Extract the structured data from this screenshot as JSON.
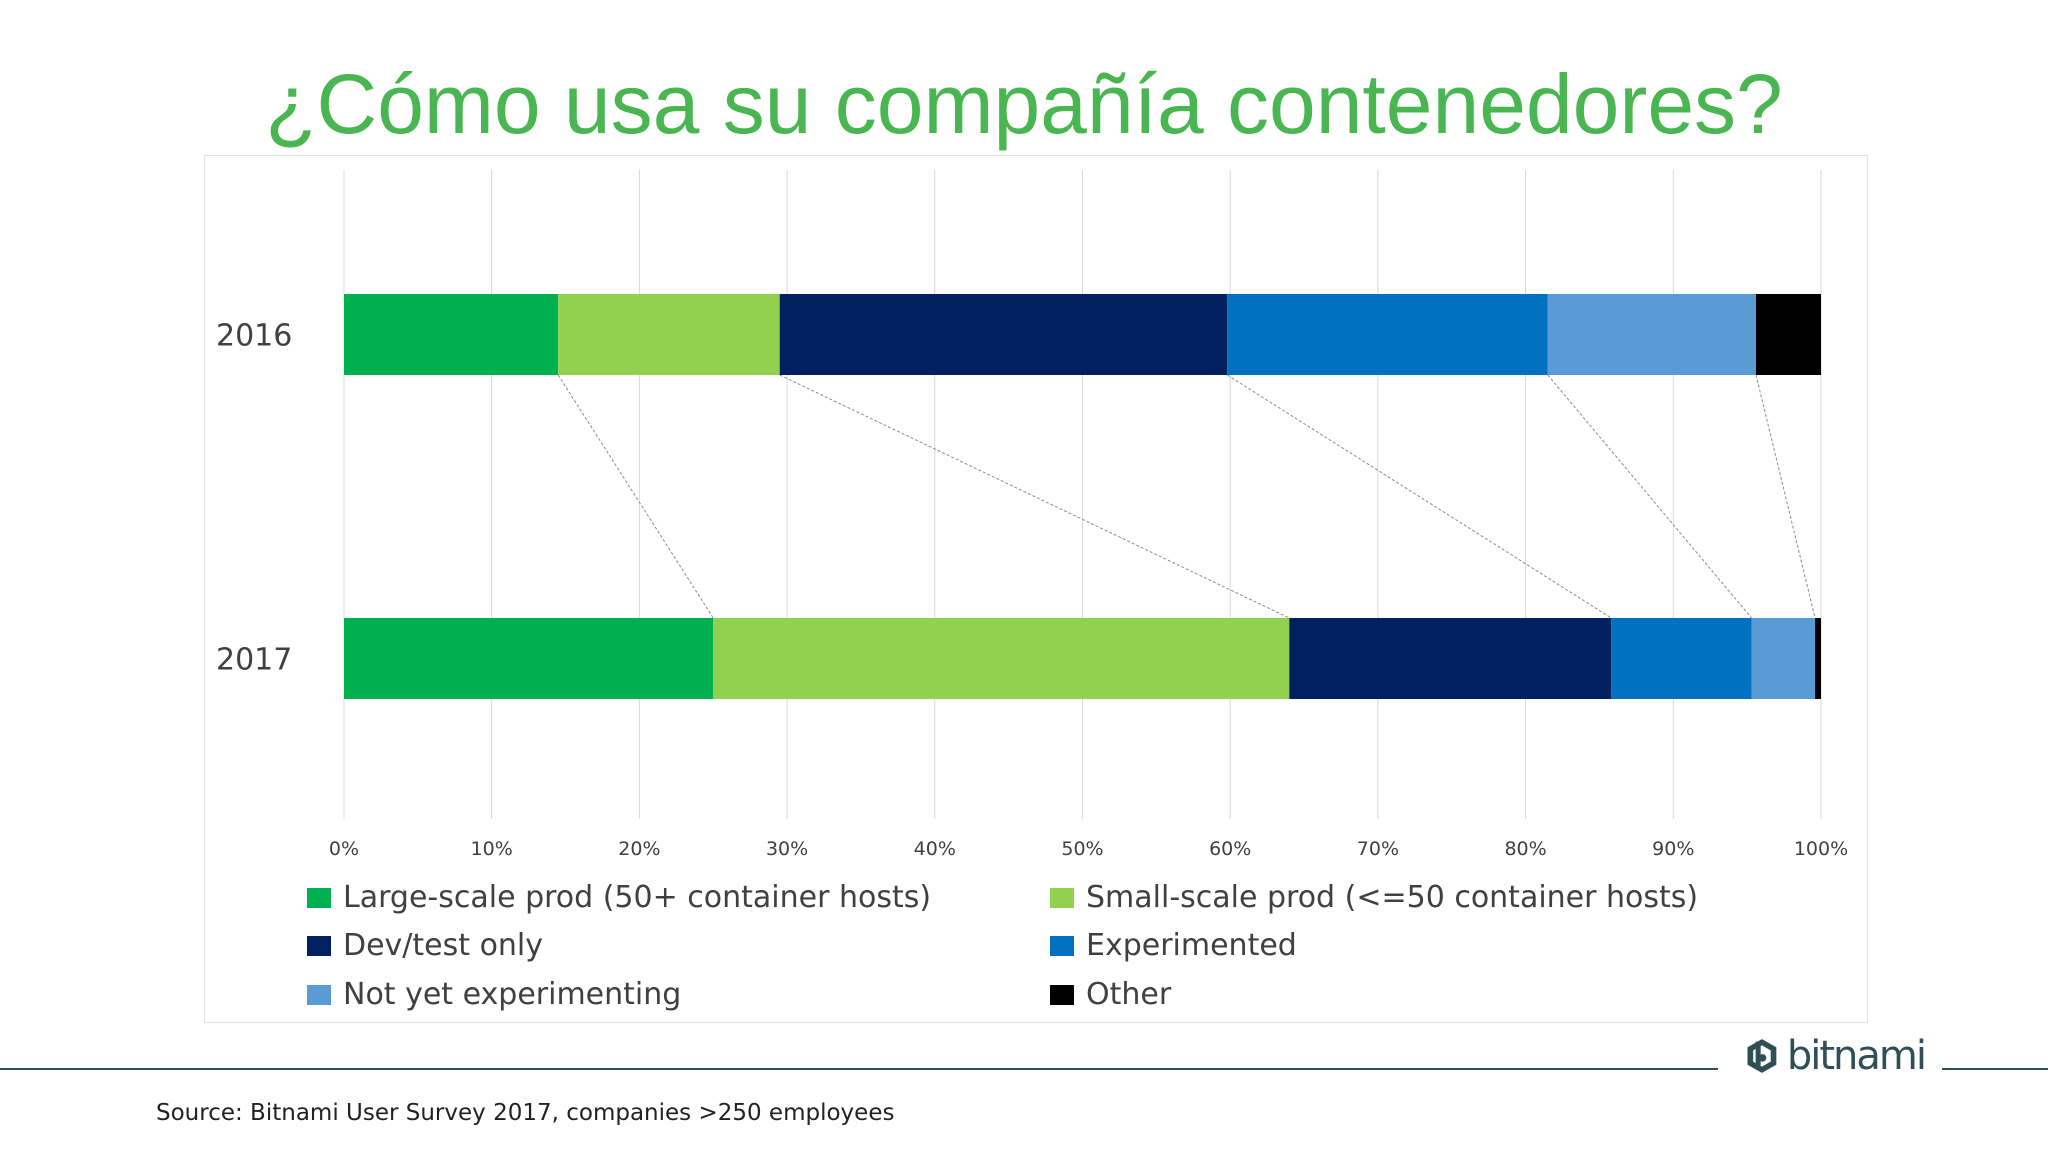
{
  "slide": {
    "title": "¿Cómo usa su compañía contenedores?",
    "source": "Source: Bitnami User Survey 2017, companies >250 employees",
    "logo_text": "bitnami",
    "logo_icon": "bitnami-hexagon-icon",
    "title_color": "#4ab651",
    "line_color": "#2f4f57"
  },
  "chart_data": {
    "type": "bar",
    "orientation": "horizontal",
    "stacked": true,
    "percent_stacked": true,
    "categories": [
      "2016",
      "2017"
    ],
    "series": [
      {
        "name": "Large-scale prod (50+ container hosts)",
        "color": "#00b050",
        "values": [
          14.5,
          25
        ]
      },
      {
        "name": "Small-scale prod (<=50 container hosts)",
        "color": "#92d050",
        "values": [
          15,
          39
        ]
      },
      {
        "name": "Dev/test only",
        "color": "#002060",
        "values": [
          30.3,
          21.8
        ]
      },
      {
        "name": "Experimented",
        "color": "#0070c0",
        "values": [
          21.7,
          9.5
        ]
      },
      {
        "name": "Not yet experimenting",
        "color": "#5b9bd5",
        "values": [
          14.1,
          4.3
        ]
      },
      {
        "name": "Other",
        "color": "#000000",
        "values": [
          4.4,
          0.4
        ]
      }
    ],
    "x_ticks": [
      "0%",
      "10%",
      "20%",
      "30%",
      "40%",
      "50%",
      "60%",
      "70%",
      "80%",
      "90%",
      "100%"
    ],
    "xlim": [
      0,
      100
    ],
    "xlabel": "",
    "ylabel": "",
    "grid": "vertical",
    "series_lines": true,
    "legend_position": "bottom"
  }
}
